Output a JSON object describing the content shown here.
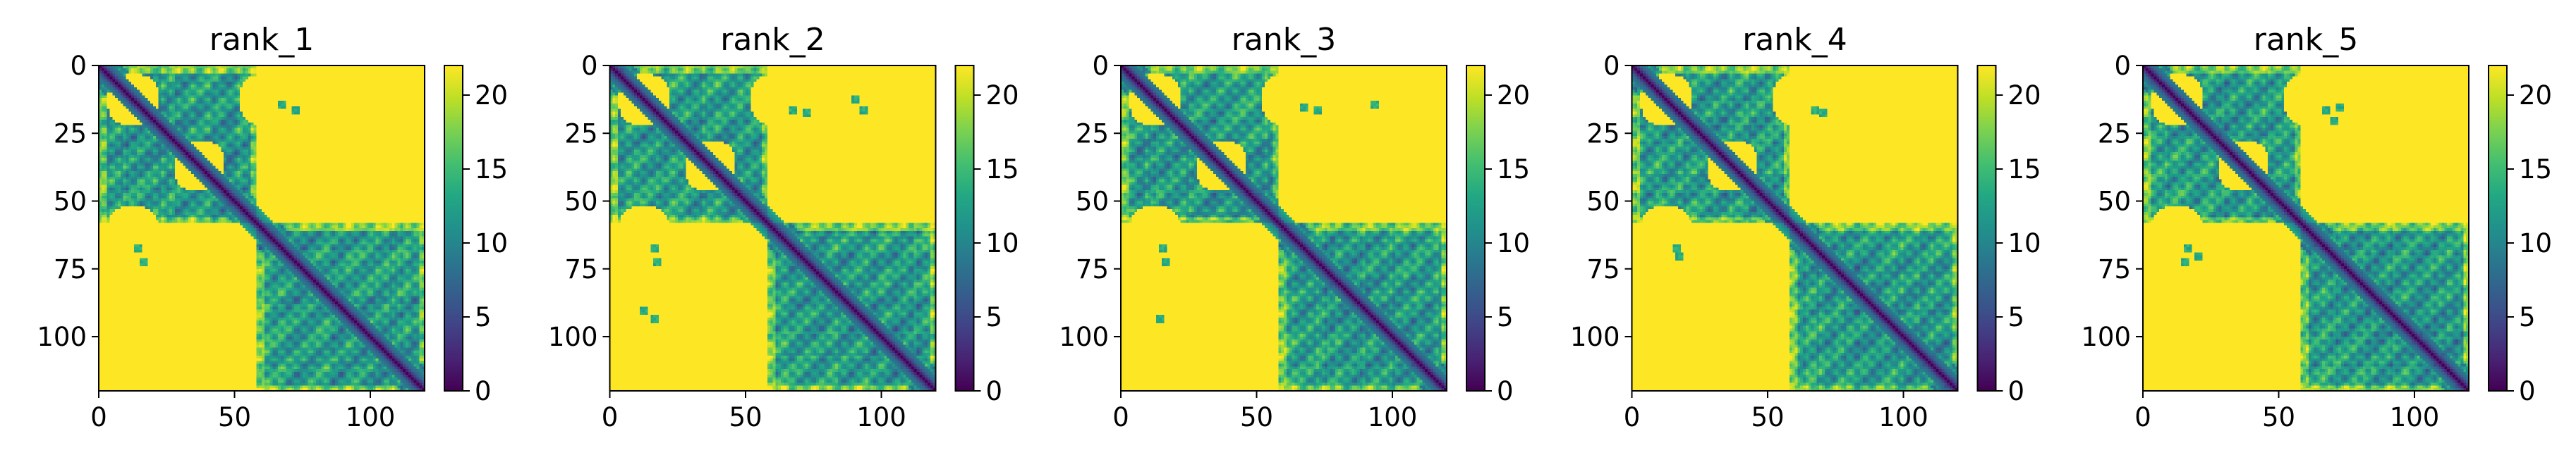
{
  "chart_data": [
    {
      "type": "heatmap",
      "title": "rank_1",
      "x_ticks": [
        0,
        50,
        100
      ],
      "y_ticks": [
        0,
        25,
        50,
        75,
        100
      ],
      "xlim": [
        0,
        120
      ],
      "ylim": [
        120,
        0
      ],
      "colorbar": {
        "ticks": [
          0,
          5,
          10,
          15,
          20
        ],
        "range": [
          0,
          22
        ],
        "colormap": "viridis"
      },
      "domains": [
        [
          0,
          58
        ],
        [
          58,
          120
        ]
      ],
      "contact_patches": [
        [
          67,
          14
        ],
        [
          72,
          16
        ]
      ],
      "grid": false
    },
    {
      "type": "heatmap",
      "title": "rank_2",
      "x_ticks": [
        0,
        50,
        100
      ],
      "y_ticks": [
        0,
        25,
        50,
        75,
        100
      ],
      "xlim": [
        0,
        120
      ],
      "ylim": [
        120,
        0
      ],
      "colorbar": {
        "ticks": [
          0,
          5,
          10,
          15,
          20
        ],
        "range": [
          0,
          22
        ],
        "colormap": "viridis"
      },
      "domains": [
        [
          0,
          58
        ],
        [
          58,
          120
        ]
      ],
      "contact_patches": [
        [
          67,
          16
        ],
        [
          72,
          17
        ],
        [
          93,
          16
        ],
        [
          90,
          12
        ]
      ],
      "grid": false
    },
    {
      "type": "heatmap",
      "title": "rank_3",
      "x_ticks": [
        0,
        50,
        100
      ],
      "y_ticks": [
        0,
        25,
        50,
        75,
        100
      ],
      "xlim": [
        0,
        120
      ],
      "ylim": [
        120,
        0
      ],
      "colorbar": {
        "ticks": [
          0,
          5,
          10,
          15,
          20
        ],
        "range": [
          0,
          22
        ],
        "colormap": "viridis"
      },
      "domains": [
        [
          0,
          58
        ],
        [
          58,
          120
        ]
      ],
      "contact_patches": [
        [
          67,
          15
        ],
        [
          72,
          16
        ],
        [
          93,
          14
        ]
      ],
      "grid": false
    },
    {
      "type": "heatmap",
      "title": "rank_4",
      "x_ticks": [
        0,
        50,
        100
      ],
      "y_ticks": [
        0,
        25,
        50,
        75,
        100
      ],
      "xlim": [
        0,
        120
      ],
      "ylim": [
        120,
        0
      ],
      "colorbar": {
        "ticks": [
          0,
          5,
          10,
          15,
          20
        ],
        "range": [
          0,
          22
        ],
        "colormap": "viridis"
      },
      "domains": [
        [
          0,
          58
        ],
        [
          58,
          120
        ]
      ],
      "contact_patches": [
        [
          67,
          16
        ],
        [
          70,
          17
        ]
      ],
      "grid": false
    },
    {
      "type": "heatmap",
      "title": "rank_5",
      "x_ticks": [
        0,
        50,
        100
      ],
      "y_ticks": [
        0,
        25,
        50,
        75,
        100
      ],
      "xlim": [
        0,
        120
      ],
      "ylim": [
        120,
        0
      ],
      "colorbar": {
        "ticks": [
          0,
          5,
          10,
          15,
          20
        ],
        "range": [
          0,
          22
        ],
        "colormap": "viridis"
      },
      "domains": [
        [
          0,
          58
        ],
        [
          58,
          120
        ]
      ],
      "contact_patches": [
        [
          67,
          16
        ],
        [
          72,
          15
        ],
        [
          20,
          70
        ]
      ],
      "grid": false
    }
  ]
}
